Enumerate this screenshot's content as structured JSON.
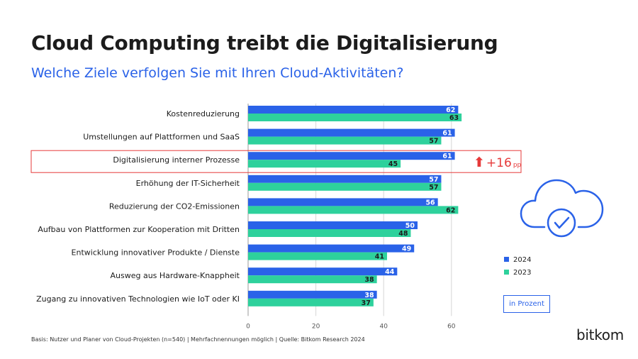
{
  "header": {
    "title": "Cloud Computing treibt die Digitalisierung",
    "subtitle": "Welche Ziele verfolgen Sie mit Ihren Cloud-Aktivitäten?"
  },
  "chart_data": {
    "type": "bar",
    "orientation": "horizontal",
    "categories": [
      "Kostenreduzierung",
      "Umstellungen auf Plattformen und SaaS",
      "Digitalisierung interner Prozesse",
      "Erhöhung der IT-Sicherheit",
      "Reduzierung der CO2-Emissionen",
      "Aufbau von Plattformen zur Kooperation mit Dritten",
      "Entwicklung innovativer Produkte / Dienste",
      "Ausweg aus Hardware-Knappheit",
      "Zugang zu innovativen Technologien wie IoT oder KI"
    ],
    "series": [
      {
        "name": "2024",
        "color": "#2a62e8",
        "values": [
          62,
          61,
          61,
          57,
          56,
          50,
          49,
          44,
          38
        ]
      },
      {
        "name": "2023",
        "color": "#2ed19c",
        "values": [
          63,
          57,
          45,
          57,
          62,
          48,
          41,
          38,
          37
        ]
      }
    ],
    "xlim": [
      0,
      60
    ],
    "xticks": [
      "0",
      "20",
      "40",
      "60"
    ],
    "legend_position": "right",
    "highlight": {
      "category_index": 2,
      "arrow": "⬆",
      "delta": "+16",
      "unit": "pp",
      "color": "#e63a3a"
    },
    "unit_label": "in Prozent"
  },
  "footnote": "Basis: Nutzer und Planer von Cloud-Projekten (n=540) | Mehrfachnennungen möglich | Quelle: Bitkom Research 2024",
  "logo": "bitkom"
}
